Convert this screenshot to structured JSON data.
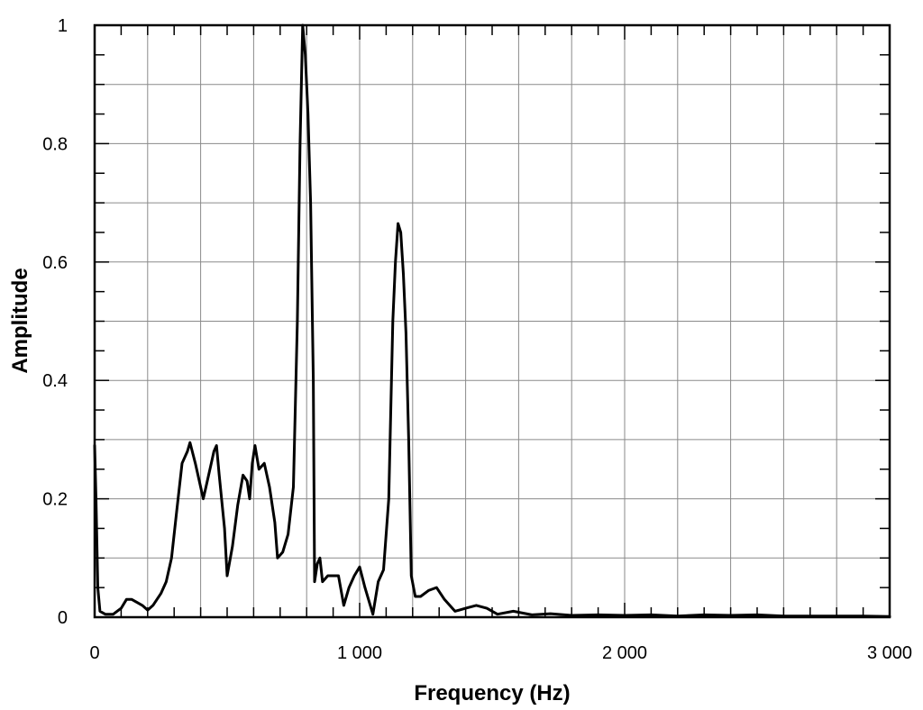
{
  "chart_data": {
    "type": "line",
    "title": "",
    "xlabel": "Frequency (Hz)",
    "ylabel": "Amplitude",
    "xlim": [
      0,
      3000
    ],
    "ylim": [
      0,
      1
    ],
    "grid": true,
    "x_ticks": [
      0,
      1000,
      2000,
      3000
    ],
    "x_tick_labels": [
      "0",
      "1 000",
      "2 000",
      "3 000"
    ],
    "x_grid_step": 200,
    "x_minor_step": 100,
    "y_ticks": [
      0,
      0.2,
      0.4,
      0.6,
      0.8,
      1
    ],
    "y_tick_labels": [
      "0",
      "0.2",
      "0.4",
      "0.6",
      "0.8",
      "1"
    ],
    "y_grid_step": 0.1,
    "y_minor_step": 0.05,
    "series": [
      {
        "color": "#000000",
        "points": [
          [
            0,
            0.29
          ],
          [
            5,
            0.2
          ],
          [
            12,
            0.05
          ],
          [
            20,
            0.01
          ],
          [
            40,
            0.005
          ],
          [
            70,
            0.005
          ],
          [
            100,
            0.015
          ],
          [
            120,
            0.03
          ],
          [
            140,
            0.03
          ],
          [
            160,
            0.025
          ],
          [
            180,
            0.02
          ],
          [
            200,
            0.012
          ],
          [
            220,
            0.02
          ],
          [
            250,
            0.04
          ],
          [
            270,
            0.06
          ],
          [
            290,
            0.1
          ],
          [
            310,
            0.18
          ],
          [
            330,
            0.26
          ],
          [
            350,
            0.28
          ],
          [
            360,
            0.295
          ],
          [
            380,
            0.26
          ],
          [
            400,
            0.22
          ],
          [
            410,
            0.2
          ],
          [
            420,
            0.22
          ],
          [
            440,
            0.26
          ],
          [
            450,
            0.28
          ],
          [
            460,
            0.29
          ],
          [
            470,
            0.24
          ],
          [
            490,
            0.15
          ],
          [
            500,
            0.07
          ],
          [
            520,
            0.12
          ],
          [
            540,
            0.19
          ],
          [
            560,
            0.24
          ],
          [
            575,
            0.23
          ],
          [
            585,
            0.2
          ],
          [
            595,
            0.26
          ],
          [
            605,
            0.29
          ],
          [
            620,
            0.25
          ],
          [
            640,
            0.26
          ],
          [
            660,
            0.22
          ],
          [
            680,
            0.16
          ],
          [
            690,
            0.1
          ],
          [
            710,
            0.11
          ],
          [
            730,
            0.14
          ],
          [
            750,
            0.22
          ],
          [
            765,
            0.5
          ],
          [
            775,
            0.8
          ],
          [
            785,
            1.0
          ],
          [
            795,
            0.95
          ],
          [
            805,
            0.85
          ],
          [
            815,
            0.7
          ],
          [
            825,
            0.4
          ],
          [
            830,
            0.06
          ],
          [
            840,
            0.09
          ],
          [
            850,
            0.1
          ],
          [
            860,
            0.06
          ],
          [
            880,
            0.07
          ],
          [
            900,
            0.07
          ],
          [
            920,
            0.07
          ],
          [
            940,
            0.02
          ],
          [
            960,
            0.05
          ],
          [
            980,
            0.07
          ],
          [
            1000,
            0.085
          ],
          [
            1020,
            0.05
          ],
          [
            1040,
            0.02
          ],
          [
            1050,
            0.005
          ],
          [
            1070,
            0.06
          ],
          [
            1090,
            0.08
          ],
          [
            1110,
            0.2
          ],
          [
            1125,
            0.5
          ],
          [
            1135,
            0.6
          ],
          [
            1145,
            0.665
          ],
          [
            1155,
            0.65
          ],
          [
            1165,
            0.58
          ],
          [
            1175,
            0.48
          ],
          [
            1185,
            0.3
          ],
          [
            1195,
            0.07
          ],
          [
            1210,
            0.035
          ],
          [
            1230,
            0.035
          ],
          [
            1260,
            0.045
          ],
          [
            1290,
            0.05
          ],
          [
            1320,
            0.03
          ],
          [
            1360,
            0.01
          ],
          [
            1400,
            0.015
          ],
          [
            1440,
            0.02
          ],
          [
            1480,
            0.015
          ],
          [
            1520,
            0.005
          ],
          [
            1580,
            0.01
          ],
          [
            1650,
            0.004
          ],
          [
            1720,
            0.006
          ],
          [
            1800,
            0.003
          ],
          [
            1900,
            0.004
          ],
          [
            2000,
            0.003
          ],
          [
            2100,
            0.004
          ],
          [
            2200,
            0.002
          ],
          [
            2300,
            0.004
          ],
          [
            2400,
            0.003
          ],
          [
            2500,
            0.004
          ],
          [
            2600,
            0.002
          ],
          [
            2700,
            0.002
          ],
          [
            2800,
            0.002
          ],
          [
            2900,
            0.002
          ],
          [
            3000,
            0.001
          ]
        ]
      }
    ]
  }
}
